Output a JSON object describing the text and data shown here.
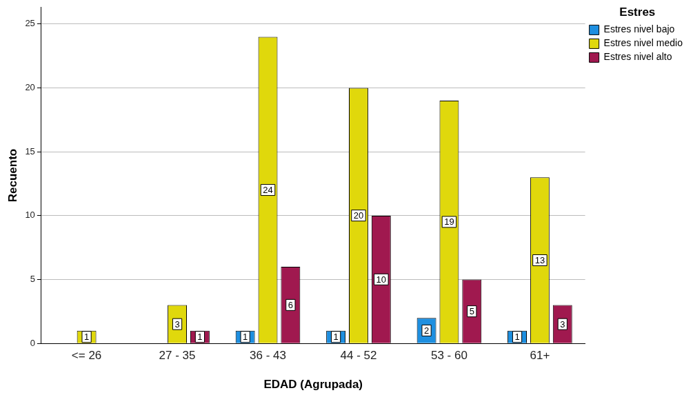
{
  "chart_data": {
    "type": "bar",
    "xlabel": "EDAD (Agrupada)",
    "ylabel": "Recuento",
    "legend_title": "Estres",
    "categories": [
      "<= 26",
      "27 - 35",
      "36 - 43",
      "44 - 52",
      "53 - 60",
      "61+"
    ],
    "series": [
      {
        "name": "Estres nivel bajo",
        "color": "#1e8fe0",
        "values": [
          null,
          null,
          1,
          1,
          2,
          1
        ]
      },
      {
        "name": "Estres nivel medio",
        "color": "#e0d80c",
        "values": [
          1,
          3,
          24,
          20,
          19,
          13
        ]
      },
      {
        "name": "Estres nivel alto",
        "color": "#a0194f",
        "values": [
          null,
          1,
          6,
          10,
          5,
          3
        ]
      }
    ],
    "ylim": [
      0,
      26.3
    ],
    "yticks": [
      0,
      5,
      10,
      15,
      20,
      25
    ],
    "grid": "y",
    "legend": "top right",
    "data_labels": true
  }
}
